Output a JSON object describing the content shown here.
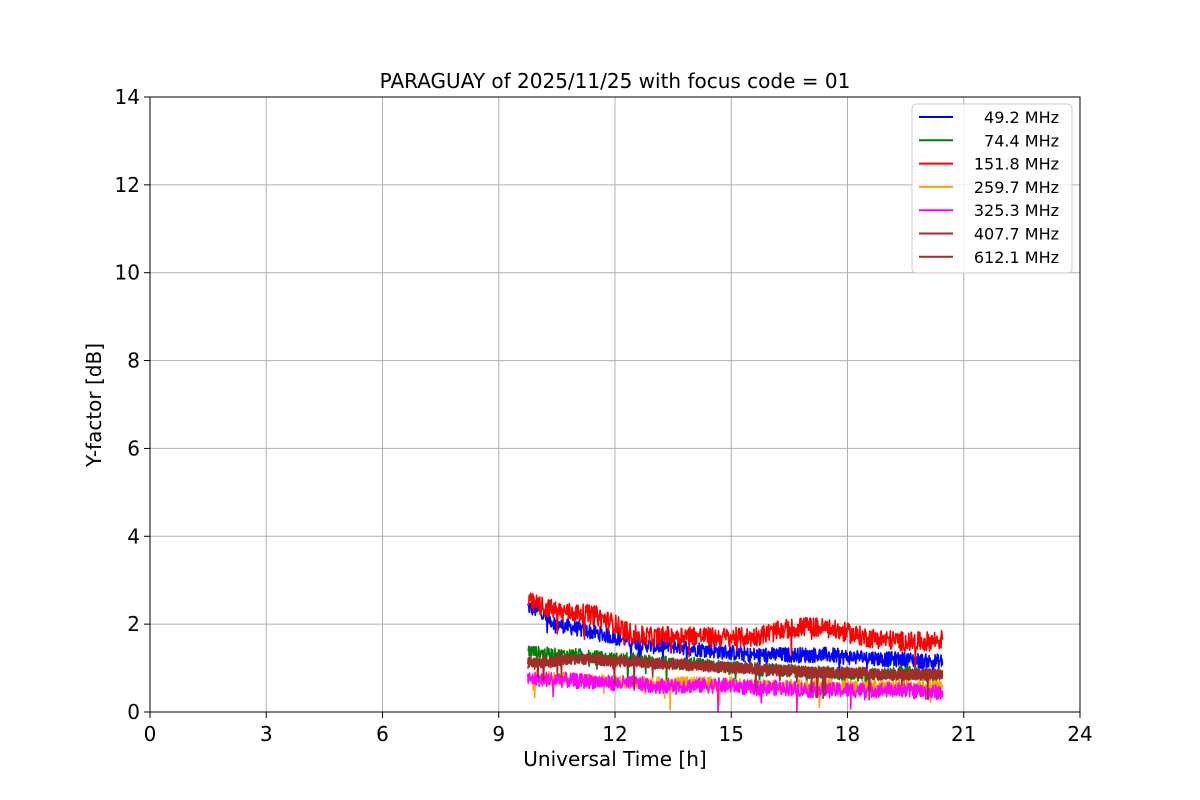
{
  "chart_data": {
    "type": "line",
    "title": "PARAGUAY of 2025/11/25 with focus code = 01",
    "xlabel": "Universal Time [h]",
    "ylabel": "Y-factor [dB]",
    "xlim": [
      0,
      24
    ],
    "ylim": [
      0,
      14
    ],
    "xticks": [
      0,
      3,
      6,
      9,
      12,
      15,
      18,
      21,
      24
    ],
    "yticks": [
      0,
      2,
      4,
      6,
      8,
      10,
      12,
      14
    ],
    "xtick_labels": [
      "0",
      "3",
      "6",
      "9",
      "12",
      "15",
      "18",
      "21",
      "24"
    ],
    "ytick_labels": [
      "0",
      "2",
      "4",
      "6",
      "8",
      "10",
      "12",
      "14"
    ],
    "grid": true,
    "legend_position": "top-right",
    "x": [
      9.75,
      10.0,
      10.5,
      11.0,
      11.5,
      12.0,
      12.5,
      13.0,
      13.5,
      14.0,
      14.5,
      15.0,
      15.5,
      16.0,
      16.5,
      17.0,
      17.5,
      18.0,
      18.5,
      19.0,
      19.5,
      20.0,
      20.45
    ],
    "series": [
      {
        "name": "49.2 MHz",
        "color": "#0000ff",
        "noise": 0.35,
        "values": [
          2.4,
          2.3,
          2.0,
          1.9,
          1.8,
          1.7,
          1.6,
          1.5,
          1.5,
          1.45,
          1.4,
          1.35,
          1.3,
          1.3,
          1.3,
          1.3,
          1.3,
          1.25,
          1.25,
          1.2,
          1.2,
          1.15,
          1.15
        ]
      },
      {
        "name": "74.4 MHz",
        "color": "#008000",
        "noise": 0.3,
        "values": [
          1.4,
          1.35,
          1.3,
          1.3,
          1.25,
          1.2,
          1.2,
          1.15,
          1.1,
          1.1,
          1.05,
          1.0,
          1.0,
          0.95,
          0.95,
          0.9,
          0.9,
          0.85,
          0.85,
          0.85,
          0.9,
          0.85,
          0.85
        ]
      },
      {
        "name": "151.8 MHz",
        "color": "#ff0000",
        "noise": 0.45,
        "values": [
          2.5,
          2.45,
          2.3,
          2.25,
          2.2,
          2.0,
          1.75,
          1.7,
          1.75,
          1.75,
          1.7,
          1.7,
          1.7,
          1.8,
          1.9,
          1.95,
          1.9,
          1.8,
          1.7,
          1.65,
          1.6,
          1.6,
          1.65
        ]
      },
      {
        "name": "259.7 MHz",
        "color": "#ffa500",
        "noise": 0.3,
        "values": [
          0.8,
          0.8,
          0.75,
          0.75,
          0.7,
          0.7,
          0.65,
          0.65,
          0.65,
          0.65,
          0.65,
          0.65,
          0.6,
          0.6,
          0.6,
          0.6,
          0.6,
          0.6,
          0.6,
          0.6,
          0.6,
          0.6,
          0.6
        ]
      },
      {
        "name": "325.3 MHz",
        "color": "#ff00ff",
        "noise": 0.35,
        "values": [
          0.75,
          0.75,
          0.75,
          0.7,
          0.7,
          0.65,
          0.65,
          0.6,
          0.6,
          0.6,
          0.6,
          0.6,
          0.55,
          0.55,
          0.55,
          0.5,
          0.5,
          0.5,
          0.5,
          0.5,
          0.5,
          0.45,
          0.45
        ]
      },
      {
        "name": "407.7 MHz",
        "color": "#a52a2a",
        "noise": 0.25,
        "values": [
          1.15,
          1.15,
          1.2,
          1.2,
          1.2,
          1.15,
          1.15,
          1.1,
          1.1,
          1.05,
          1.05,
          1.0,
          1.0,
          0.95,
          0.95,
          0.9,
          0.9,
          0.9,
          0.9,
          0.85,
          0.85,
          0.85,
          0.85
        ]
      },
      {
        "name": "612.1 MHz",
        "color": "#a52a2a",
        "noise": 0.25,
        "values": [
          1.1,
          1.1,
          1.15,
          1.2,
          1.2,
          1.15,
          1.15,
          1.1,
          1.1,
          1.05,
          1.05,
          1.0,
          1.0,
          0.95,
          0.95,
          0.9,
          0.9,
          0.9,
          0.85,
          0.85,
          0.85,
          0.85,
          0.85
        ]
      }
    ]
  }
}
